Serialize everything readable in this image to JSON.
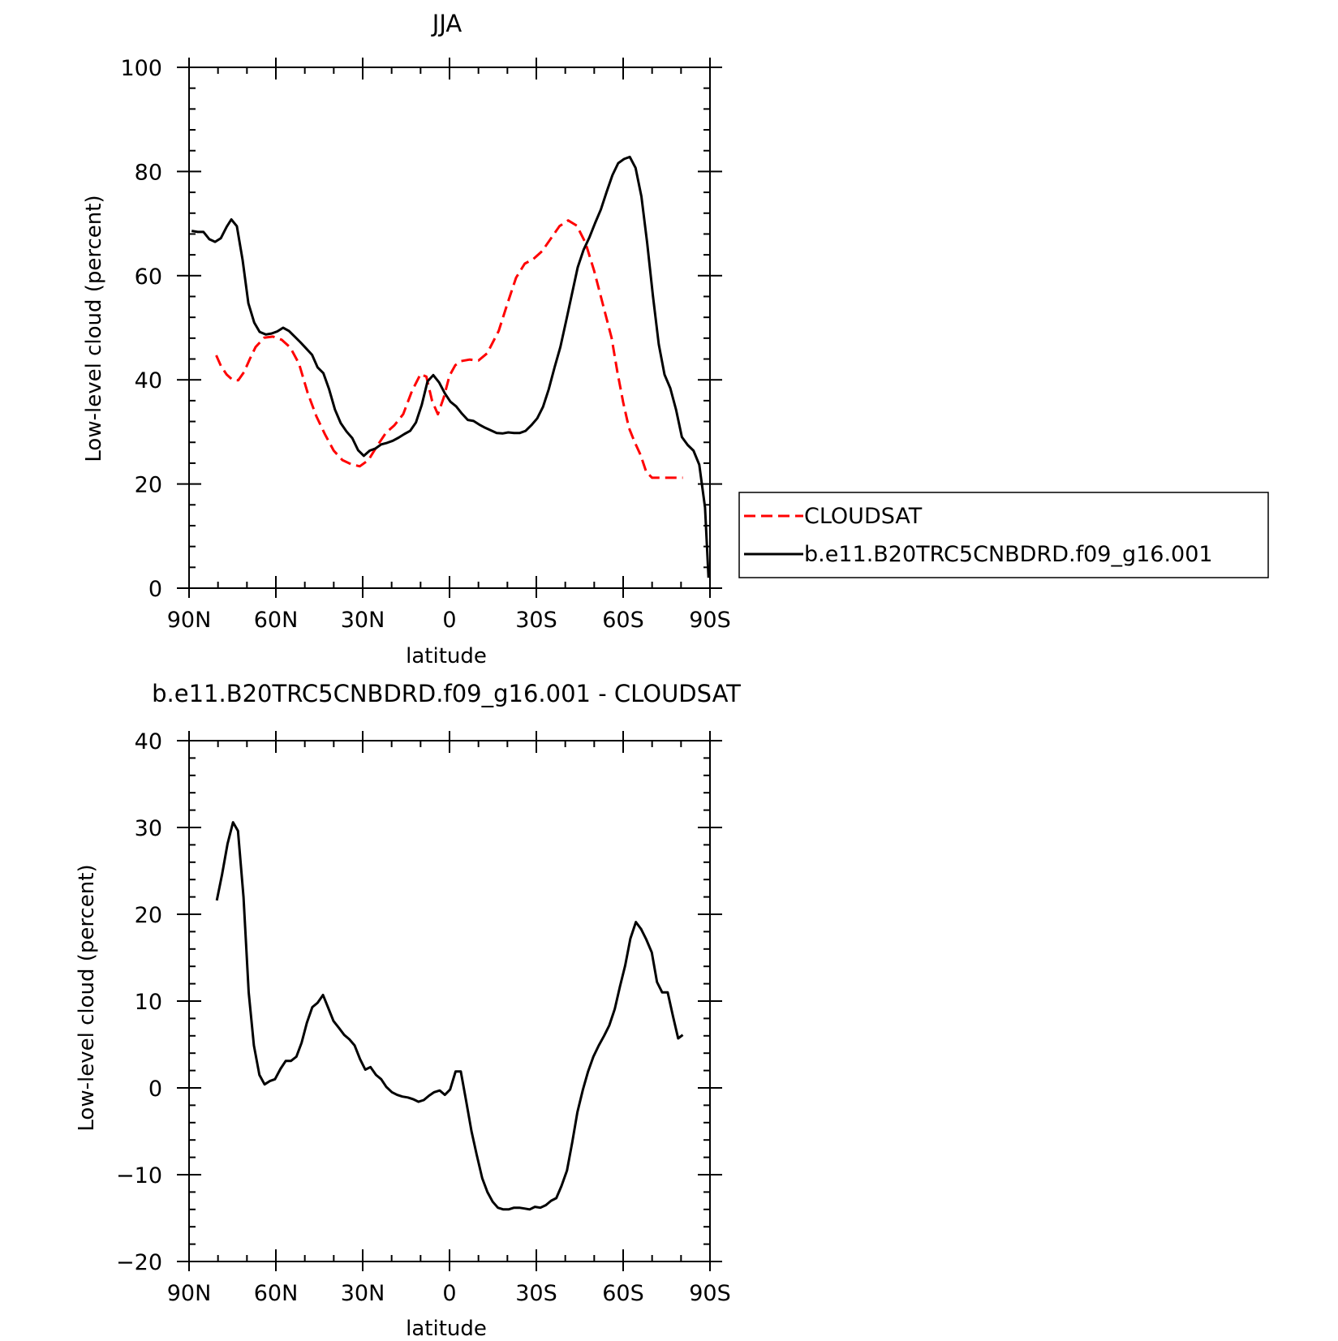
{
  "colors": {
    "observation": "#ff0000",
    "model": "#000000",
    "axes": "#000000",
    "background": "#ffffff"
  },
  "chart_data": [
    {
      "type": "line",
      "title": "JJA",
      "xlabel": "latitude",
      "ylabel": "Low-level cloud (percent)",
      "xlim": [
        90,
        -90
      ],
      "ylim": [
        0,
        100
      ],
      "x_unit": "degrees latitude (positive = N, negative = S)",
      "xticks": [
        {
          "value": 90,
          "label": "90N"
        },
        {
          "value": 60,
          "label": "60N"
        },
        {
          "value": 30,
          "label": "30N"
        },
        {
          "value": 0,
          "label": "0"
        },
        {
          "value": -30,
          "label": "30S"
        },
        {
          "value": -60,
          "label": "60S"
        },
        {
          "value": -90,
          "label": "90S"
        }
      ],
      "yticks": [
        0,
        20,
        40,
        60,
        80,
        100
      ],
      "legend_position": "right",
      "series": [
        {
          "name": "CLOUDSAT",
          "color": "#ff0000",
          "dash": "dashed",
          "x": [
            80.6,
            79,
            77,
            75,
            73,
            71,
            69,
            67,
            64,
            61,
            58,
            55,
            52,
            49,
            46,
            43,
            40,
            37,
            34,
            31,
            28,
            25,
            22,
            19,
            16,
            13,
            10,
            8,
            6,
            4,
            2,
            0,
            -2,
            -4,
            -7,
            -10,
            -13,
            -17,
            -20,
            -23,
            -26,
            -29,
            -32,
            -35,
            -38,
            -41,
            -44,
            -47,
            -50,
            -53,
            -56,
            -58,
            -60,
            -62,
            -64,
            -66,
            -68,
            -70,
            -72,
            -74,
            -76,
            -78,
            -80.6
          ],
          "y": [
            44.7,
            42.7,
            41,
            40,
            39.9,
            41.5,
            44,
            46.3,
            48.1,
            48.3,
            47.7,
            46.2,
            43.1,
            37.5,
            33,
            29.5,
            26.4,
            24.6,
            23.8,
            23.4,
            24.6,
            27.3,
            29.8,
            31.3,
            33.4,
            37.8,
            41.1,
            40.6,
            35.9,
            33.4,
            36.6,
            40.8,
            42.8,
            43.6,
            43.9,
            43.7,
            45.1,
            49.4,
            54.6,
            59.6,
            62.3,
            63.2,
            64.7,
            67.1,
            69.5,
            70.6,
            69.6,
            66.3,
            60.9,
            54.5,
            48.1,
            41.5,
            35.7,
            30.8,
            28,
            25.6,
            22.3,
            21.2,
            21.2,
            21.2,
            21.2,
            21.2,
            21.2
          ]
        },
        {
          "name": "b.e11.B20TRC5CNBDRD.f09_g16.001",
          "color": "#000000",
          "dash": "solid",
          "x": [
            89.1,
            87,
            85,
            83,
            81,
            79,
            77,
            75.4,
            73.5,
            71.5,
            69.5,
            67.5,
            65.6,
            63.5,
            61.5,
            59.5,
            57.5,
            55.5,
            53.5,
            51.5,
            49.5,
            47.5,
            45.6,
            43.6,
            41.6,
            39.6,
            37.6,
            35.6,
            33.6,
            31.6,
            29.6,
            27.6,
            25.6,
            23.6,
            21.6,
            19.6,
            17.6,
            15.6,
            13.6,
            11.6,
            9.6,
            7.6,
            5.6,
            3.6,
            1.6,
            -0.3,
            -2.3,
            -4.3,
            -6.3,
            -8.3,
            -10.3,
            -12.3,
            -14.3,
            -16.3,
            -18.3,
            -20.3,
            -22.3,
            -24.3,
            -26.3,
            -28.3,
            -30.3,
            -32.3,
            -34.3,
            -36.3,
            -38.3,
            -40.3,
            -42.3,
            -44.3,
            -46.3,
            -48.3,
            -50.3,
            -52.3,
            -54.3,
            -56.3,
            -58.3,
            -60.3,
            -62.3,
            -64.3,
            -66.3,
            -68.3,
            -70.3,
            -72.3,
            -74.3,
            -76.3,
            -78.3,
            -80.3,
            -82.3,
            -84.3,
            -86.3,
            -88.3,
            -89.5
          ],
          "y": [
            68.6,
            68.4,
            68.4,
            67,
            66.5,
            67.2,
            69.4,
            70.8,
            69.5,
            63,
            54.7,
            51,
            49.2,
            48.7,
            48.9,
            49.3,
            50,
            49.4,
            48.3,
            47.2,
            46,
            44.8,
            42.4,
            41.3,
            38.2,
            34.3,
            31.7,
            30.1,
            28.8,
            26.5,
            25.4,
            26.4,
            26.8,
            27.6,
            27.9,
            28.3,
            28.9,
            29.6,
            30.2,
            31.8,
            35.2,
            39.7,
            40.9,
            39.5,
            37.4,
            35.8,
            34.9,
            33.5,
            32.3,
            32.1,
            31.4,
            30.8,
            30.3,
            29.8,
            29.7,
            29.9,
            29.8,
            29.8,
            30.2,
            31.3,
            32.6,
            34.8,
            38.2,
            42.4,
            46.3,
            51.3,
            56.5,
            61.6,
            64.9,
            67.3,
            70.1,
            72.7,
            76.1,
            79.3,
            81.6,
            82.4,
            82.8,
            80.7,
            75.2,
            66.3,
            56.1,
            46.8,
            41,
            38.4,
            34.2,
            29,
            27.5,
            26.4,
            23.7,
            15.5,
            2
          ]
        }
      ]
    },
    {
      "type": "line",
      "title": "b.e11.B20TRC5CNBDRD.f09_g16.001 - CLOUDSAT",
      "xlabel": "latitude",
      "ylabel": "Low-level cloud (percent)",
      "xlim": [
        90,
        -90
      ],
      "ylim": [
        -20,
        40
      ],
      "x_unit": "degrees latitude (positive = N, negative = S)",
      "xticks": [
        {
          "value": 90,
          "label": "90N"
        },
        {
          "value": 60,
          "label": "60N"
        },
        {
          "value": 30,
          "label": "30N"
        },
        {
          "value": 0,
          "label": "0"
        },
        {
          "value": -30,
          "label": "30S"
        },
        {
          "value": -60,
          "label": "60S"
        },
        {
          "value": -90,
          "label": "90S"
        }
      ],
      "yticks": [
        -20,
        -10,
        0,
        10,
        20,
        30,
        40
      ],
      "series": [
        {
          "color": "#000000",
          "dash": "solid",
          "x": [
            80.4,
            78.6,
            76.7,
            74.8,
            73.1,
            71.2,
            69.4,
            67.6,
            65.7,
            63.9,
            62,
            60.3,
            58.4,
            56.6,
            54.8,
            52.9,
            51.1,
            49.3,
            47.4,
            45.6,
            43.7,
            41.9,
            40.1,
            38.2,
            36.4,
            34.6,
            32.8,
            30.9,
            29.1,
            27.3,
            25.4,
            23.6,
            21.8,
            19.9,
            18.1,
            16.3,
            14.4,
            12.6,
            10.7,
            8.9,
            7.1,
            5.3,
            3.4,
            1.6,
            -0.2,
            -2.1,
            -3.9,
            -5.7,
            -7.6,
            -9.4,
            -11.3,
            -13.1,
            -14.9,
            -16.7,
            -18.6,
            -20.4,
            -22.3,
            -24.1,
            -25.9,
            -27.7,
            -29.5,
            -31.4,
            -33.3,
            -35.1,
            -36.9,
            -38.7,
            -40.6,
            -42.4,
            -44.2,
            -46.1,
            -47.9,
            -49.7,
            -51.6,
            -53.4,
            -55.2,
            -57.1,
            -58.9,
            -60.7,
            -62.5,
            -64.4,
            -66.2,
            -68,
            -69.9,
            -71.7,
            -73.5,
            -75.4,
            -77.2,
            -79,
            -80.6
          ],
          "y": [
            21.6,
            24.6,
            28.1,
            30.6,
            29.6,
            22,
            11,
            4.9,
            1.5,
            0.4,
            0.8,
            1,
            2.2,
            3.1,
            3.1,
            3.6,
            5.2,
            7.5,
            9.3,
            9.8,
            10.7,
            9.2,
            7.7,
            6.9,
            6.1,
            5.6,
            4.9,
            3.3,
            2.1,
            2.4,
            1.5,
            1,
            0.1,
            -0.5,
            -0.8,
            -1,
            -1.1,
            -1.3,
            -1.6,
            -1.4,
            -0.9,
            -0.5,
            -0.3,
            -0.8,
            -0.2,
            1.9,
            1.9,
            -1.4,
            -5,
            -7.7,
            -10.4,
            -12,
            -13.1,
            -13.8,
            -14,
            -14,
            -13.8,
            -13.8,
            -13.9,
            -14,
            -13.7,
            -13.8,
            -13.5,
            -13,
            -12.7,
            -11.3,
            -9.5,
            -6.3,
            -2.8,
            -0.2,
            1.9,
            3.6,
            4.9,
            6,
            7.2,
            9.1,
            11.7,
            14.1,
            17.2,
            19.1,
            18.3,
            17.1,
            15.6,
            12.2,
            11,
            11,
            8.3,
            5.7,
            6.1
          ]
        }
      ]
    }
  ]
}
